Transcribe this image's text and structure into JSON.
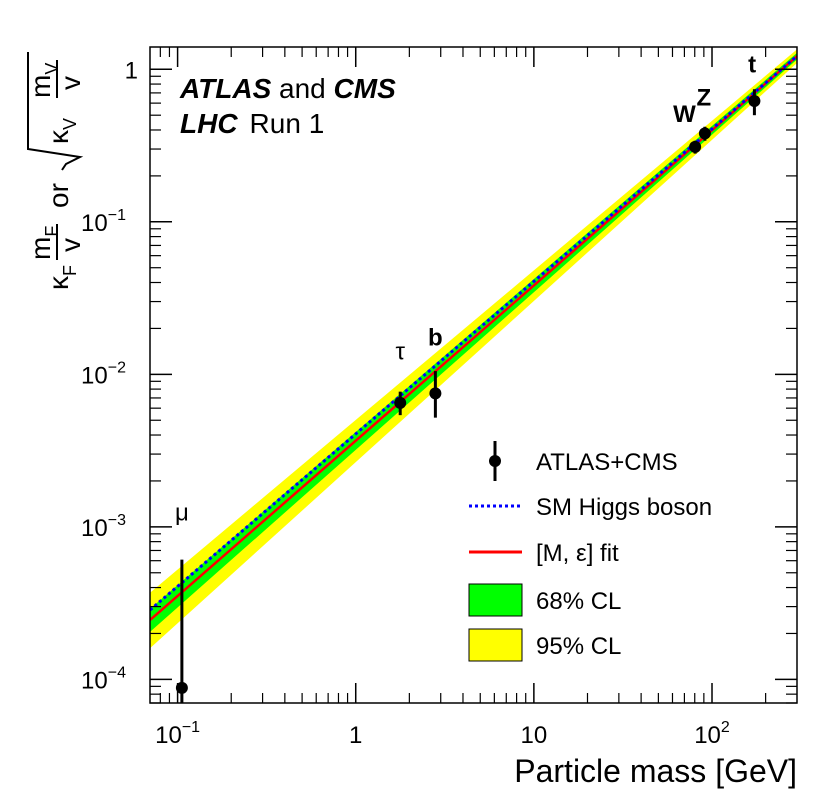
{
  "chart_data": {
    "type": "scatter",
    "xlabel": "Particle mass [GeV]",
    "ylabel_parts": {
      "kappa_f": "κ",
      "kappa_f_sub": "F",
      "frac_f_num": "m",
      "frac_f_num_sub": "F",
      "frac_f_den": "v",
      "or_text": "or",
      "kappa_v": "κ",
      "kappa_v_sub": "V",
      "frac_v_num": "m",
      "frac_v_num_sub": "V",
      "frac_v_den": "v"
    },
    "x_scale": "log",
    "y_scale": "log",
    "xlim": [
      0.07,
      300
    ],
    "ylim": [
      7e-05,
      1.4
    ],
    "x_ticks": [
      {
        "value": 0.1,
        "base": "10",
        "exp": "−1"
      },
      {
        "value": 1,
        "base": "1",
        "exp": ""
      },
      {
        "value": 10,
        "base": "10",
        "exp": ""
      },
      {
        "value": 100,
        "base": "10",
        "exp": "2"
      }
    ],
    "y_ticks": [
      {
        "value": 0.0001,
        "base": "10",
        "exp": "−4"
      },
      {
        "value": 0.001,
        "base": "10",
        "exp": "−3"
      },
      {
        "value": 0.01,
        "base": "10",
        "exp": "−2"
      },
      {
        "value": 0.1,
        "base": "10",
        "exp": "−1"
      },
      {
        "value": 1,
        "base": "1",
        "exp": ""
      }
    ],
    "experiment": {
      "line1_bold": "ATLAS",
      "line1_mid": " and ",
      "line1_bold2": "CMS",
      "line2_bold": "LHC",
      "line2_rest": "Run 1"
    },
    "points": [
      {
        "label": "μ",
        "x": 0.1057,
        "y": 8.8e-05,
        "y_low": 7e-05,
        "y_high": 0.00061
      },
      {
        "label": "τ",
        "x": 1.777,
        "y": 0.0065,
        "y_low": 0.0054,
        "y_high": 0.0077
      },
      {
        "label": "b",
        "x": 2.8,
        "y": 0.0075,
        "y_low": 0.0052,
        "y_high": 0.0105
      },
      {
        "label": "W",
        "x": 80.4,
        "y": 0.31,
        "y_low": 0.28,
        "y_high": 0.34
      },
      {
        "label": "Z",
        "x": 91.2,
        "y": 0.38,
        "y_low": 0.34,
        "y_high": 0.42
      },
      {
        "label": "t",
        "x": 173,
        "y": 0.62,
        "y_low": 0.5,
        "y_high": 0.74
      }
    ],
    "particle_labels": [
      {
        "text": "μ",
        "x": 0.1057,
        "y": 0.0011,
        "bold": false
      },
      {
        "text": "τ",
        "x": 1.777,
        "y": 0.0125,
        "bold": false
      },
      {
        "text": "b",
        "x": 2.8,
        "y": 0.0155,
        "bold": true
      },
      {
        "text": "W",
        "x": 70,
        "y": 0.45,
        "bold": true
      },
      {
        "text": "Z",
        "x": 90,
        "y": 0.58,
        "bold": true
      },
      {
        "text": "t",
        "x": 168,
        "y": 0.95,
        "bold": true
      }
    ],
    "series": [
      {
        "name": "ATLAS+CMS",
        "kind": "points",
        "color": "#000000"
      },
      {
        "name": "SM Higgs boson",
        "kind": "line",
        "style": "dotted",
        "color": "#0000ff",
        "y_at_x_min": 0.000285,
        "y_at_x_max": 1.22
      },
      {
        "name": "[M, ε] fit",
        "kind": "line",
        "style": "solid",
        "color": "#ff0000",
        "y_at_x_min": 0.000245,
        "y_at_x_max": 1.22
      },
      {
        "name": "68% CL",
        "kind": "band",
        "color": "#00ff00",
        "low_at_x_min": 0.000205,
        "high_at_x_min": 0.00029,
        "low_at_x_max": 1.16,
        "high_at_x_max": 1.28
      },
      {
        "name": "95% CL",
        "kind": "band",
        "color": "#ffff00",
        "low_at_x_min": 0.00016,
        "high_at_x_min": 0.00037,
        "low_at_x_max": 1.1,
        "high_at_x_max": 1.35
      }
    ],
    "legend": {
      "placement": "bottom-right",
      "entries": [
        "ATLAS+CMS",
        "SM Higgs boson",
        "[M, ε] fit",
        "68% CL",
        "95% CL"
      ]
    }
  }
}
